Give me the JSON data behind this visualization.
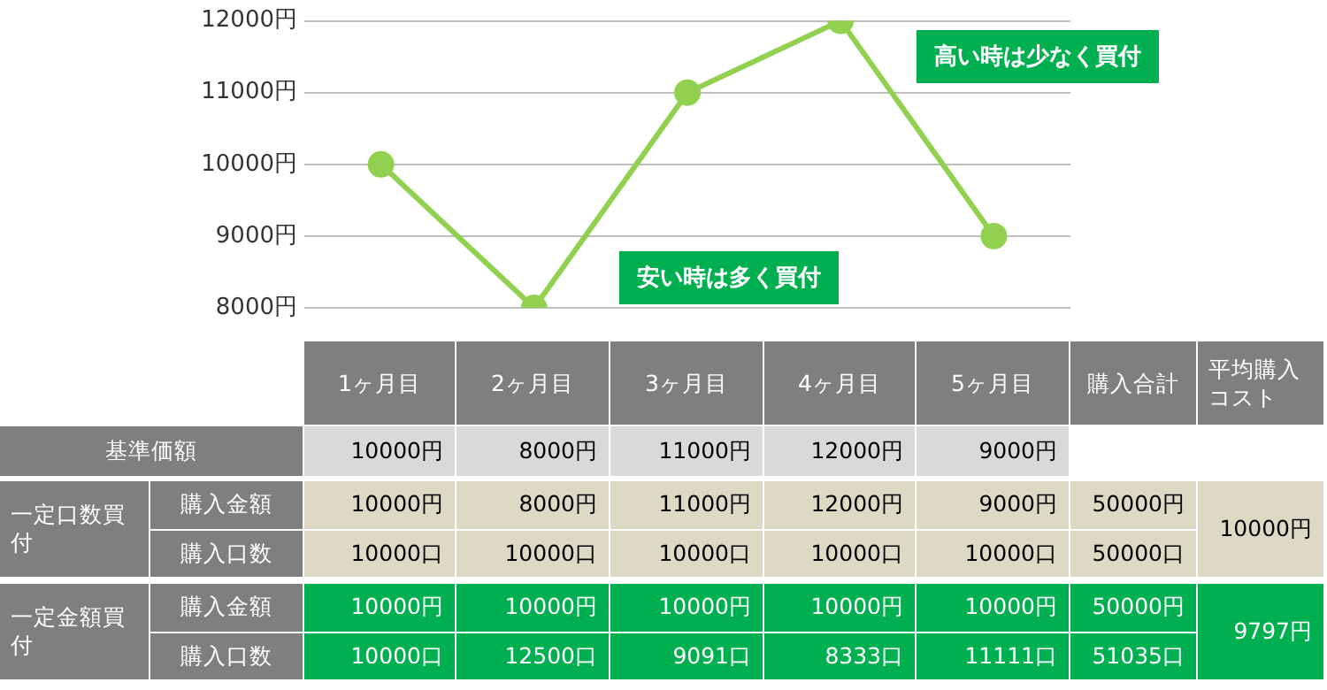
{
  "chart_data": {
    "type": "line",
    "categories": [
      "1ヶ月目",
      "2ヶ月目",
      "3ヶ月目",
      "4ヶ月目",
      "5ヶ月目"
    ],
    "values": [
      10000,
      8000,
      11000,
      12000,
      9000
    ],
    "value_labels": [
      "10000円",
      "8000円",
      "11000円",
      "12000円",
      "9000円"
    ],
    "color": "#92d050",
    "marker": "circle",
    "line_style": "solid",
    "ylim": [
      8000,
      12000
    ],
    "yticks": [
      {
        "value": 8000,
        "label": "8000円"
      },
      {
        "value": 9000,
        "label": "9000円"
      },
      {
        "value": 10000,
        "label": "10000円"
      },
      {
        "value": 11000,
        "label": "11000円"
      },
      {
        "value": 12000,
        "label": "12000円"
      }
    ],
    "grid": "y",
    "legend": false,
    "tick_labels": "y",
    "annotations": [
      "高い時は少なく買付",
      "安い時は多く買付",
      "購入合計",
      "平均購入コスト",
      "基準価額",
      "一定口数買付",
      "購入金額",
      "10000円",
      "8000円",
      "11000円",
      "12000円",
      "9000円",
      "50000円",
      "10000円",
      "購入口数",
      "10000口",
      "10000口",
      "10000口",
      "10000口",
      "10000口",
      "50000口",
      "一定金額買付",
      "購入金額",
      "10000円",
      "10000円",
      "10000円",
      "10000円",
      "10000円",
      "50000円",
      "9797円",
      "購入口数",
      "10000口",
      "12500口",
      "9091口",
      "8333口",
      "11111口",
      "51035口"
    ]
  }
}
